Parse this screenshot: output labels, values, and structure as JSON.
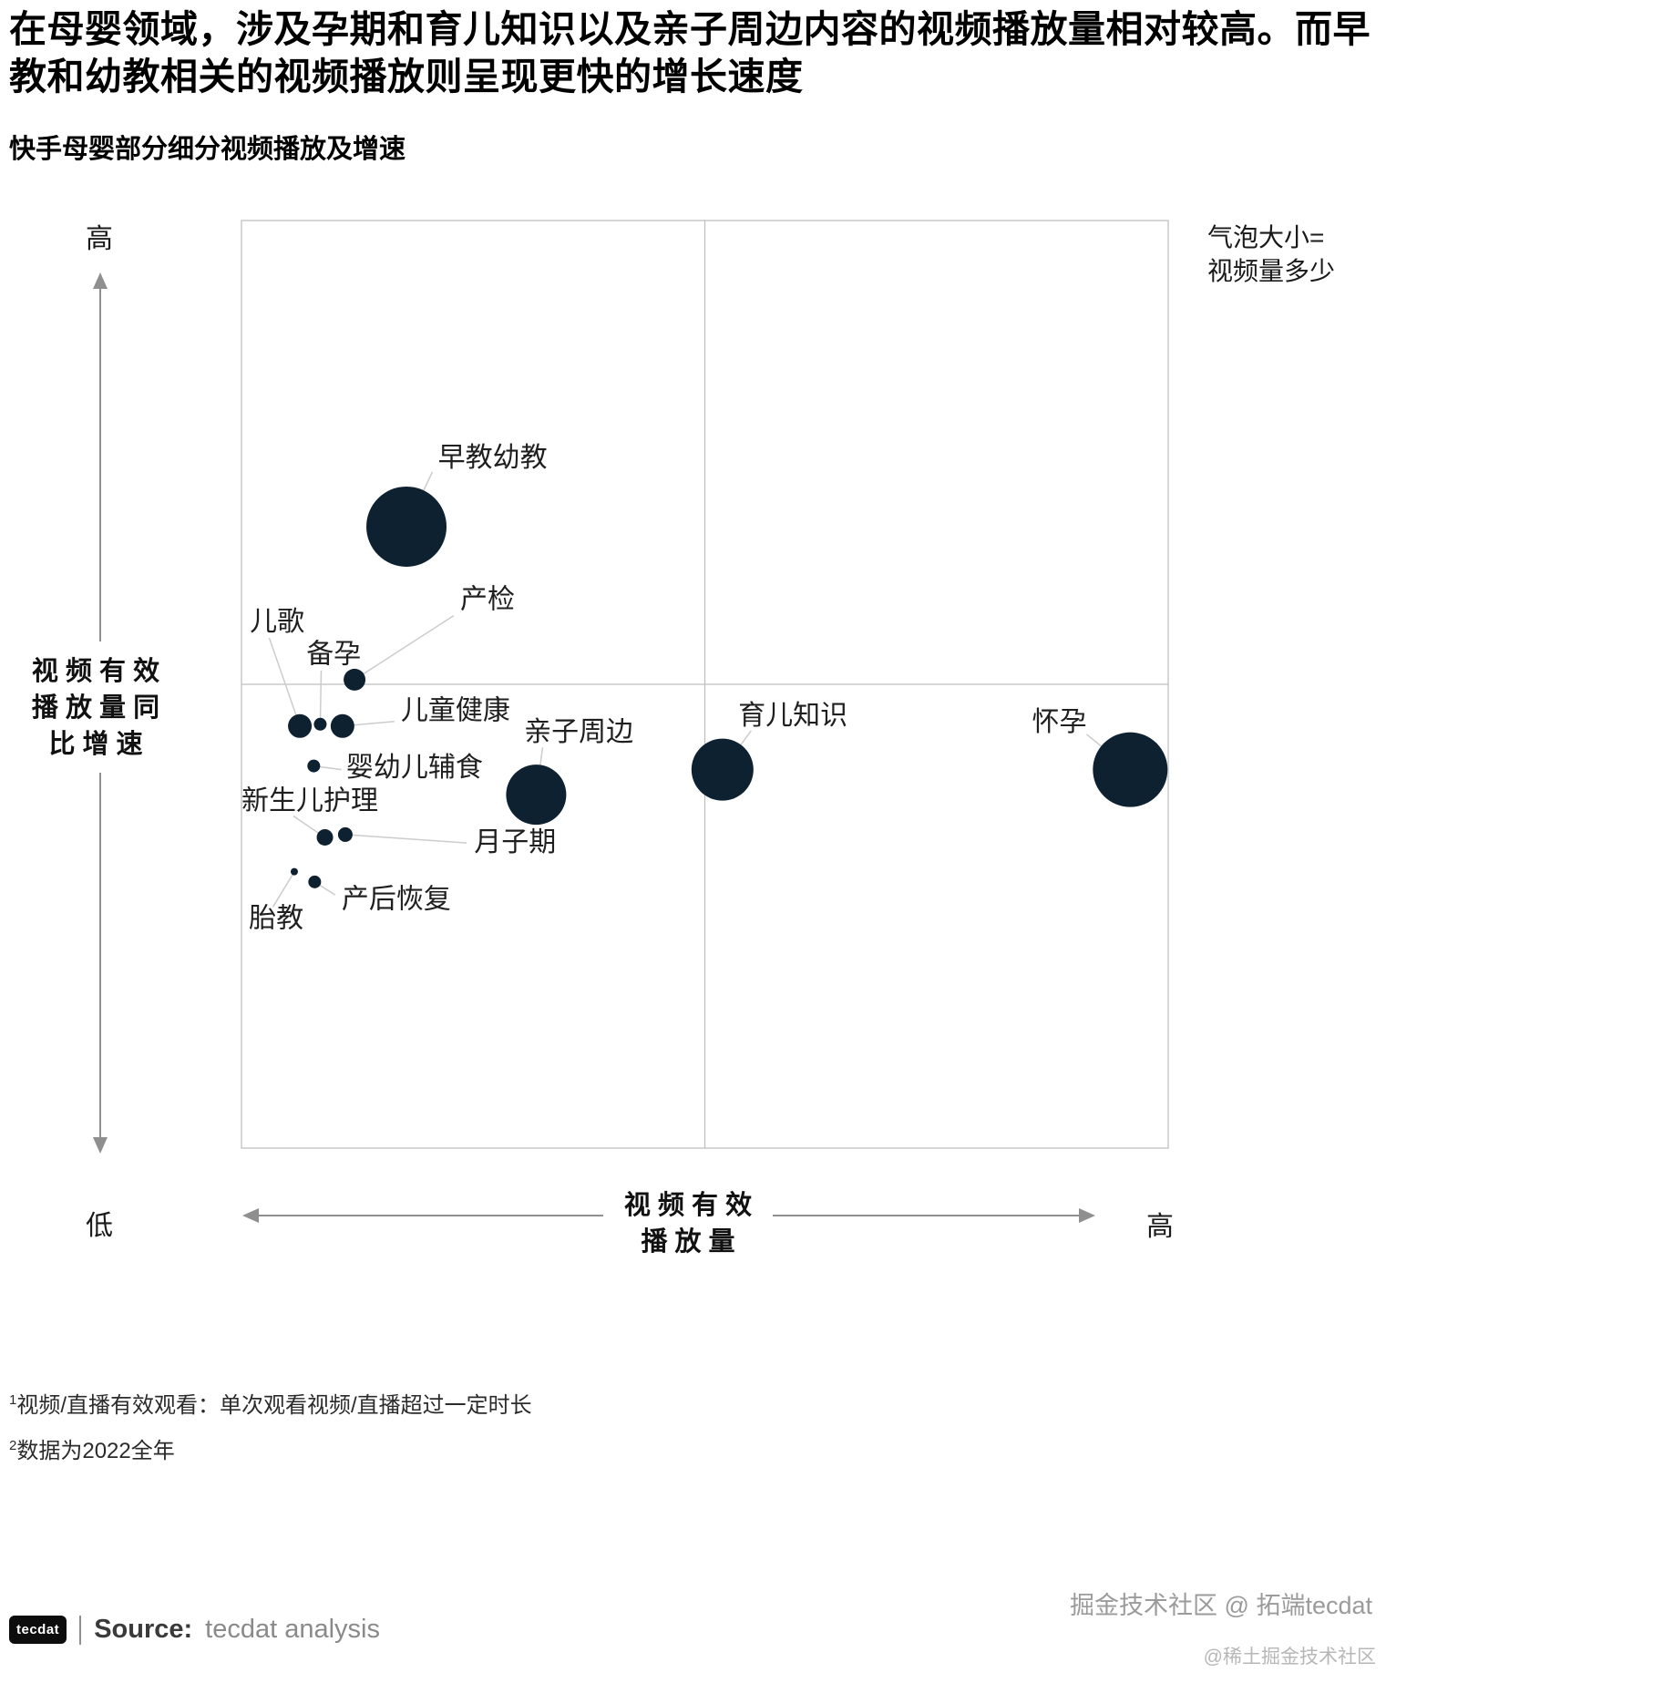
{
  "header": {
    "title": "在母婴领域，涉及孕期和育儿知识以及亲子周边内容的视频播放量相对较高。而早教和幼教相关的视频播放则呈现更快的增长速度",
    "subtitle": "快手母婴部分细分视频播放及增速"
  },
  "chart_data": {
    "type": "scatter",
    "subtype": "bubble-quadrant",
    "title": "快手母婴部分细分视频播放及增速",
    "xlabel": "视频有效播放量",
    "ylabel": "视频有效播放量同比增速",
    "x_axis": {
      "max_label": "高",
      "title_lines": [
        "视 频 有 效",
        "播 放 量"
      ]
    },
    "y_axis": {
      "max_label": "高",
      "min_label": "低",
      "title_lines": [
        "视 频 有 效",
        "播 放 量 同",
        "比 增 速"
      ]
    },
    "legend": {
      "lines": [
        "气泡大小=",
        "视频量多少"
      ]
    },
    "bubble_color": "#0e2130",
    "grid_color": "#bfbfbf",
    "axis_color": "#8f8f8f",
    "leader_color": "#cccccc",
    "xlim": [
      0,
      100
    ],
    "ylim": [
      0,
      100
    ],
    "points": [
      {
        "label": "早教幼教",
        "x": 17.8,
        "y": 67.0,
        "r": 44,
        "lx": 21.2,
        "ly": 73.5,
        "leader": [
          20.6,
          72.9
        ]
      },
      {
        "label": "产检",
        "x": 12.2,
        "y": 50.5,
        "r": 12,
        "lx": 23.6,
        "ly": 58.2,
        "leader": [
          22.9,
          57.4
        ]
      },
      {
        "label": "儿歌",
        "x": 6.3,
        "y": 45.5,
        "r": 13,
        "lx": 0.9,
        "ly": 55.8,
        "leader": [
          3.0,
          55.0
        ]
      },
      {
        "label": "备孕",
        "x": 8.5,
        "y": 45.7,
        "r": 7,
        "lx": 7.0,
        "ly": 52.3,
        "leader": [
          8.6,
          51.5
        ]
      },
      {
        "label": "儿童健康",
        "x": 10.9,
        "y": 45.5,
        "r": 13,
        "lx": 17.2,
        "ly": 46.2,
        "leader": [
          16.5,
          46.0
        ]
      },
      {
        "label": "婴幼儿辅食",
        "x": 7.8,
        "y": 41.2,
        "r": 7,
        "lx": 11.3,
        "ly": 40.1,
        "leader": [
          10.8,
          40.8
        ]
      },
      {
        "label": "新生儿护理",
        "x": 9.0,
        "y": 33.5,
        "r": 9,
        "lx": 0.0,
        "ly": 36.5,
        "leader": [
          5.6,
          35.8
        ]
      },
      {
        "label": "月子期",
        "x": 11.2,
        "y": 33.8,
        "r": 8,
        "lx": 25.1,
        "ly": 32.0,
        "leader": [
          24.3,
          32.9
        ]
      },
      {
        "label": "亲子周边",
        "x": 31.8,
        "y": 38.1,
        "r": 33,
        "lx": 30.5,
        "ly": 43.9,
        "leader": [
          32.5,
          43.2
        ]
      },
      {
        "label": "育儿知识",
        "x": 51.9,
        "y": 40.8,
        "r": 34,
        "lx": 53.6,
        "ly": 45.7,
        "leader": [
          55.0,
          45.0
        ]
      },
      {
        "label": "怀孕",
        "x": 95.9,
        "y": 40.8,
        "r": 41,
        "lx": 85.3,
        "ly": 45.0,
        "leader": [
          91.2,
          44.6
        ]
      },
      {
        "label": "胎教",
        "x": 5.7,
        "y": 29.8,
        "r": 4,
        "lx": 0.8,
        "ly": 23.8,
        "leader": [
          3.4,
          26.0
        ]
      },
      {
        "label": "产后恢复",
        "x": 7.9,
        "y": 28.7,
        "r": 7,
        "lx": 10.8,
        "ly": 25.9,
        "leader": [
          10.1,
          27.3
        ]
      }
    ]
  },
  "footnotes": [
    {
      "sup": "1",
      "text": "视频/直播有效观看：单次观看视频/直播超过一定时长"
    },
    {
      "sup": "2",
      "text": "数据为2022全年"
    }
  ],
  "footer": {
    "logo": "tecdat",
    "source_label": "Source:",
    "source_value": "tecdat analysis",
    "watermark1": "掘金技术社区 @ 拓端tecdat",
    "watermark2": "@稀土掘金技术社区"
  }
}
